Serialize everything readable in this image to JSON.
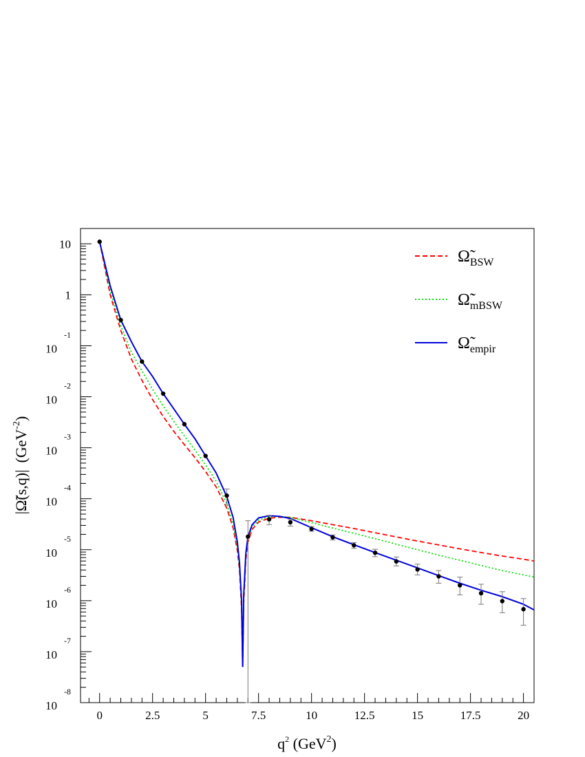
{
  "chart_data": {
    "type": "line",
    "xlabel": {
      "base": "q",
      "exp": "2",
      "unit_pre": " (GeV",
      "unit_exp": "2",
      "unit_post": ")"
    },
    "ylabel": {
      "main": "|Ω̃(s,q)|",
      "unit_pre": "(GeV",
      "unit_exp": "-2",
      "unit_post": ")"
    },
    "xlim": [
      -0.9,
      20.5
    ],
    "ylim": [
      1e-08,
      20
    ],
    "yscale": "log",
    "legend_position": "top-right",
    "x_ticks": [
      {
        "value": 0,
        "label": "0"
      },
      {
        "value": 2.5,
        "label": "2.5"
      },
      {
        "value": 5,
        "label": "5"
      },
      {
        "value": 7.5,
        "label": "7.5"
      },
      {
        "value": 10,
        "label": "10"
      },
      {
        "value": 12.5,
        "label": "12.5"
      },
      {
        "value": 15,
        "label": "15"
      },
      {
        "value": 17.5,
        "label": "17.5"
      },
      {
        "value": 20,
        "label": "20"
      }
    ],
    "y_ticks": [
      {
        "value": 10,
        "base": "10",
        "exp": ""
      },
      {
        "value": 1,
        "base": "1",
        "exp": ""
      },
      {
        "value": 0.1,
        "base": "10",
        "exp": "-1"
      },
      {
        "value": 0.01,
        "base": "10",
        "exp": "-2"
      },
      {
        "value": 0.001,
        "base": "10",
        "exp": "-3"
      },
      {
        "value": 0.0001,
        "base": "10",
        "exp": "-4"
      },
      {
        "value": 1e-05,
        "base": "10",
        "exp": "-5"
      },
      {
        "value": 1e-06,
        "base": "10",
        "exp": "-6"
      },
      {
        "value": 1e-07,
        "base": "10",
        "exp": "-7"
      },
      {
        "value": 1e-08,
        "base": "10",
        "exp": "-8"
      }
    ],
    "series": [
      {
        "name": "Ω̃",
        "sub": "BSW",
        "color": "#ff0000",
        "style": "dashed",
        "x": [
          0,
          0.5,
          1,
          1.5,
          2,
          2.5,
          3,
          3.5,
          4,
          4.5,
          5,
          5.5,
          6,
          6.3,
          6.5,
          6.6,
          6.7,
          6.75,
          6.8,
          6.9,
          7.0,
          7.2,
          7.5,
          8,
          8.5,
          9,
          10,
          11,
          12,
          13,
          14,
          15,
          16,
          17,
          18,
          19,
          20,
          20.5
        ],
        "y": [
          11,
          1.0,
          0.2,
          0.055,
          0.021,
          0.0088,
          0.0041,
          0.0021,
          0.00115,
          0.00064,
          0.00034,
          0.00017,
          6.5e-05,
          2.7e-05,
          9.5e-06,
          4e-06,
          7e-07,
          5e-08,
          9e-07,
          6.4e-06,
          1.4e-05,
          2.5e-05,
          3.5e-05,
          4.15e-05,
          4.35e-05,
          4.3e-05,
          3.7e-05,
          3.1e-05,
          2.6e-05,
          2.15e-05,
          1.78e-05,
          1.48e-05,
          1.24e-05,
          1.04e-05,
          8.8e-06,
          7.5e-06,
          6.5e-06,
          6e-06
        ]
      },
      {
        "name": "Ω̃",
        "sub": "mBSW",
        "color": "#00e000",
        "style": "dotted",
        "x": [
          0,
          0.5,
          1,
          1.5,
          2,
          2.5,
          3,
          3.5,
          4,
          4.5,
          5,
          5.5,
          6,
          6.3,
          6.5,
          6.6,
          6.7,
          6.75,
          6.8,
          6.9,
          7.0,
          7.2,
          7.5,
          8,
          8.5,
          9,
          10,
          11,
          12,
          13,
          14,
          15,
          16,
          17,
          18,
          19,
          20,
          20.5
        ],
        "y": [
          11,
          1.2,
          0.25,
          0.075,
          0.032,
          0.014,
          0.0066,
          0.0033,
          0.0017,
          0.0009,
          0.00046,
          0.00022,
          8e-05,
          3.2e-05,
          1.1e-05,
          4.5e-06,
          8e-07,
          5e-08,
          1.1e-06,
          7.4e-06,
          1.6e-05,
          2.8e-05,
          3.8e-05,
          4.45e-05,
          4.5e-05,
          4.3e-05,
          3.4e-05,
          2.65e-05,
          2.1e-05,
          1.65e-05,
          1.28e-05,
          1e-05,
          7.8e-06,
          6.2e-06,
          4.9e-06,
          3.9e-06,
          3.2e-06,
          2.9e-06
        ]
      },
      {
        "name": "Ω̃",
        "sub": "empir",
        "color": "#0000dd",
        "style": "solid",
        "x": [
          0,
          0.5,
          1,
          1.5,
          2,
          2.5,
          3,
          3.5,
          4,
          4.5,
          5,
          5.5,
          6,
          6.3,
          6.5,
          6.6,
          6.7,
          6.75,
          6.8,
          6.9,
          7.0,
          7.2,
          7.5,
          8,
          8.5,
          9,
          10,
          11,
          12,
          13,
          14,
          15,
          16,
          17,
          18,
          19,
          20,
          20.5
        ],
        "y": [
          11,
          1.5,
          0.32,
          0.12,
          0.049,
          0.025,
          0.0115,
          0.0058,
          0.0029,
          0.0015,
          0.00069,
          0.00032,
          0.00011,
          4.3e-05,
          1.4e-05,
          5.5e-06,
          1e-06,
          5e-08,
          1.3e-06,
          8.5e-06,
          1.8e-05,
          3.1e-05,
          4.2e-05,
          4.65e-05,
          4.5e-05,
          4.1e-05,
          2.7e-05,
          1.8e-05,
          1.25e-05,
          8.8e-06,
          6.2e-06,
          4.4e-06,
          3.1e-06,
          2.2e-06,
          1.6e-06,
          1.2e-06,
          8.5e-07,
          6.6e-07
        ]
      }
    ],
    "data_points": {
      "x": [
        0,
        1,
        2,
        3,
        4,
        5,
        6,
        7,
        8,
        9,
        10,
        11,
        12,
        13,
        14,
        15,
        16,
        17,
        18,
        19,
        20
      ],
      "y": [
        11,
        0.32,
        0.049,
        0.0115,
        0.0029,
        0.00069,
        0.000115,
        1.8e-05,
        3.95e-05,
        3.45e-05,
        2.55e-05,
        1.75e-05,
        1.22e-05,
        8.7e-06,
        5.9e-06,
        4.1e-06,
        3e-06,
        2e-06,
        1.4e-06,
        9.8e-07,
        6.8e-07
      ],
      "lo": [
        11,
        0.32,
        0.049,
        0.0115,
        0.0029,
        0.00069,
        7.8e-05,
        1e-08,
        3.1e-05,
        2.9e-05,
        2.3e-05,
        1.55e-05,
        1.06e-05,
        7.3e-06,
        4.8e-06,
        3.2e-06,
        2.2e-06,
        1.3e-06,
        8.5e-07,
        5.8e-07,
        3.3e-07
      ],
      "hi": [
        11,
        0.32,
        0.049,
        0.0115,
        0.0029,
        0.00069,
        0.000155,
        3.7e-05,
        4.7e-05,
        3.95e-05,
        2.85e-05,
        1.95e-05,
        1.38e-05,
        1.02e-05,
        7.2e-06,
        5.2e-06,
        3.9e-06,
        2.9e-06,
        2.1e-06,
        1.5e-06,
        1.1e-06
      ]
    }
  }
}
